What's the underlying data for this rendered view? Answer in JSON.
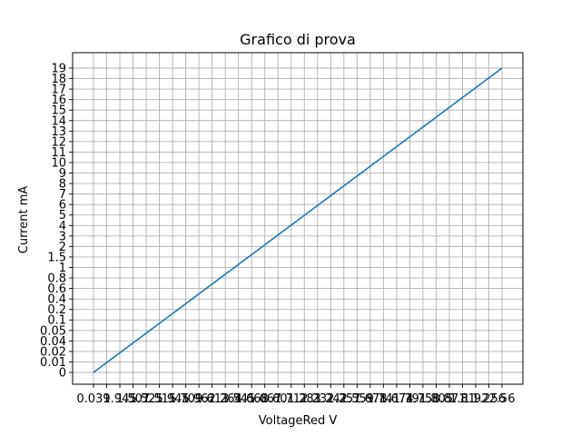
{
  "chart_data": {
    "type": "line",
    "title": "Grafico di prova",
    "xlabel": "VoltageRed V",
    "ylabel": "Current mA",
    "grid": true,
    "legend": "none",
    "x_tick_labels": [
      "0.039",
      "1",
      "1.945",
      "1.507",
      "1.525",
      "1.515",
      "1.945",
      "1.709",
      "1.962",
      "1.613",
      "1.264",
      "1.545",
      "1.668",
      "1.667",
      "1.601",
      "1.712",
      "1.283",
      "1.232",
      "1.242",
      "1.257",
      "1.559",
      "1.678",
      "1.741",
      "1.674",
      "1.791",
      "1.758",
      "1.805",
      "1.871",
      "1.81",
      "1.92",
      "1.256",
      "2.56"
    ],
    "y_tick_labels": [
      "0",
      "0.01",
      "0.02",
      "0.04",
      "0.05",
      "0.1",
      "0.2",
      "0.4",
      "0.6",
      "0.8",
      "1",
      "1.5",
      "2",
      "3",
      "4",
      "5",
      "6",
      "7",
      "8",
      "9",
      "10",
      "11",
      "12",
      "13",
      "14",
      "15",
      "16",
      "17",
      "18",
      "19"
    ],
    "series": [
      {
        "x": [
          "0.039",
          "2.56"
        ],
        "y": [
          "0",
          "19"
        ],
        "color": "#1f77b4"
      }
    ]
  }
}
